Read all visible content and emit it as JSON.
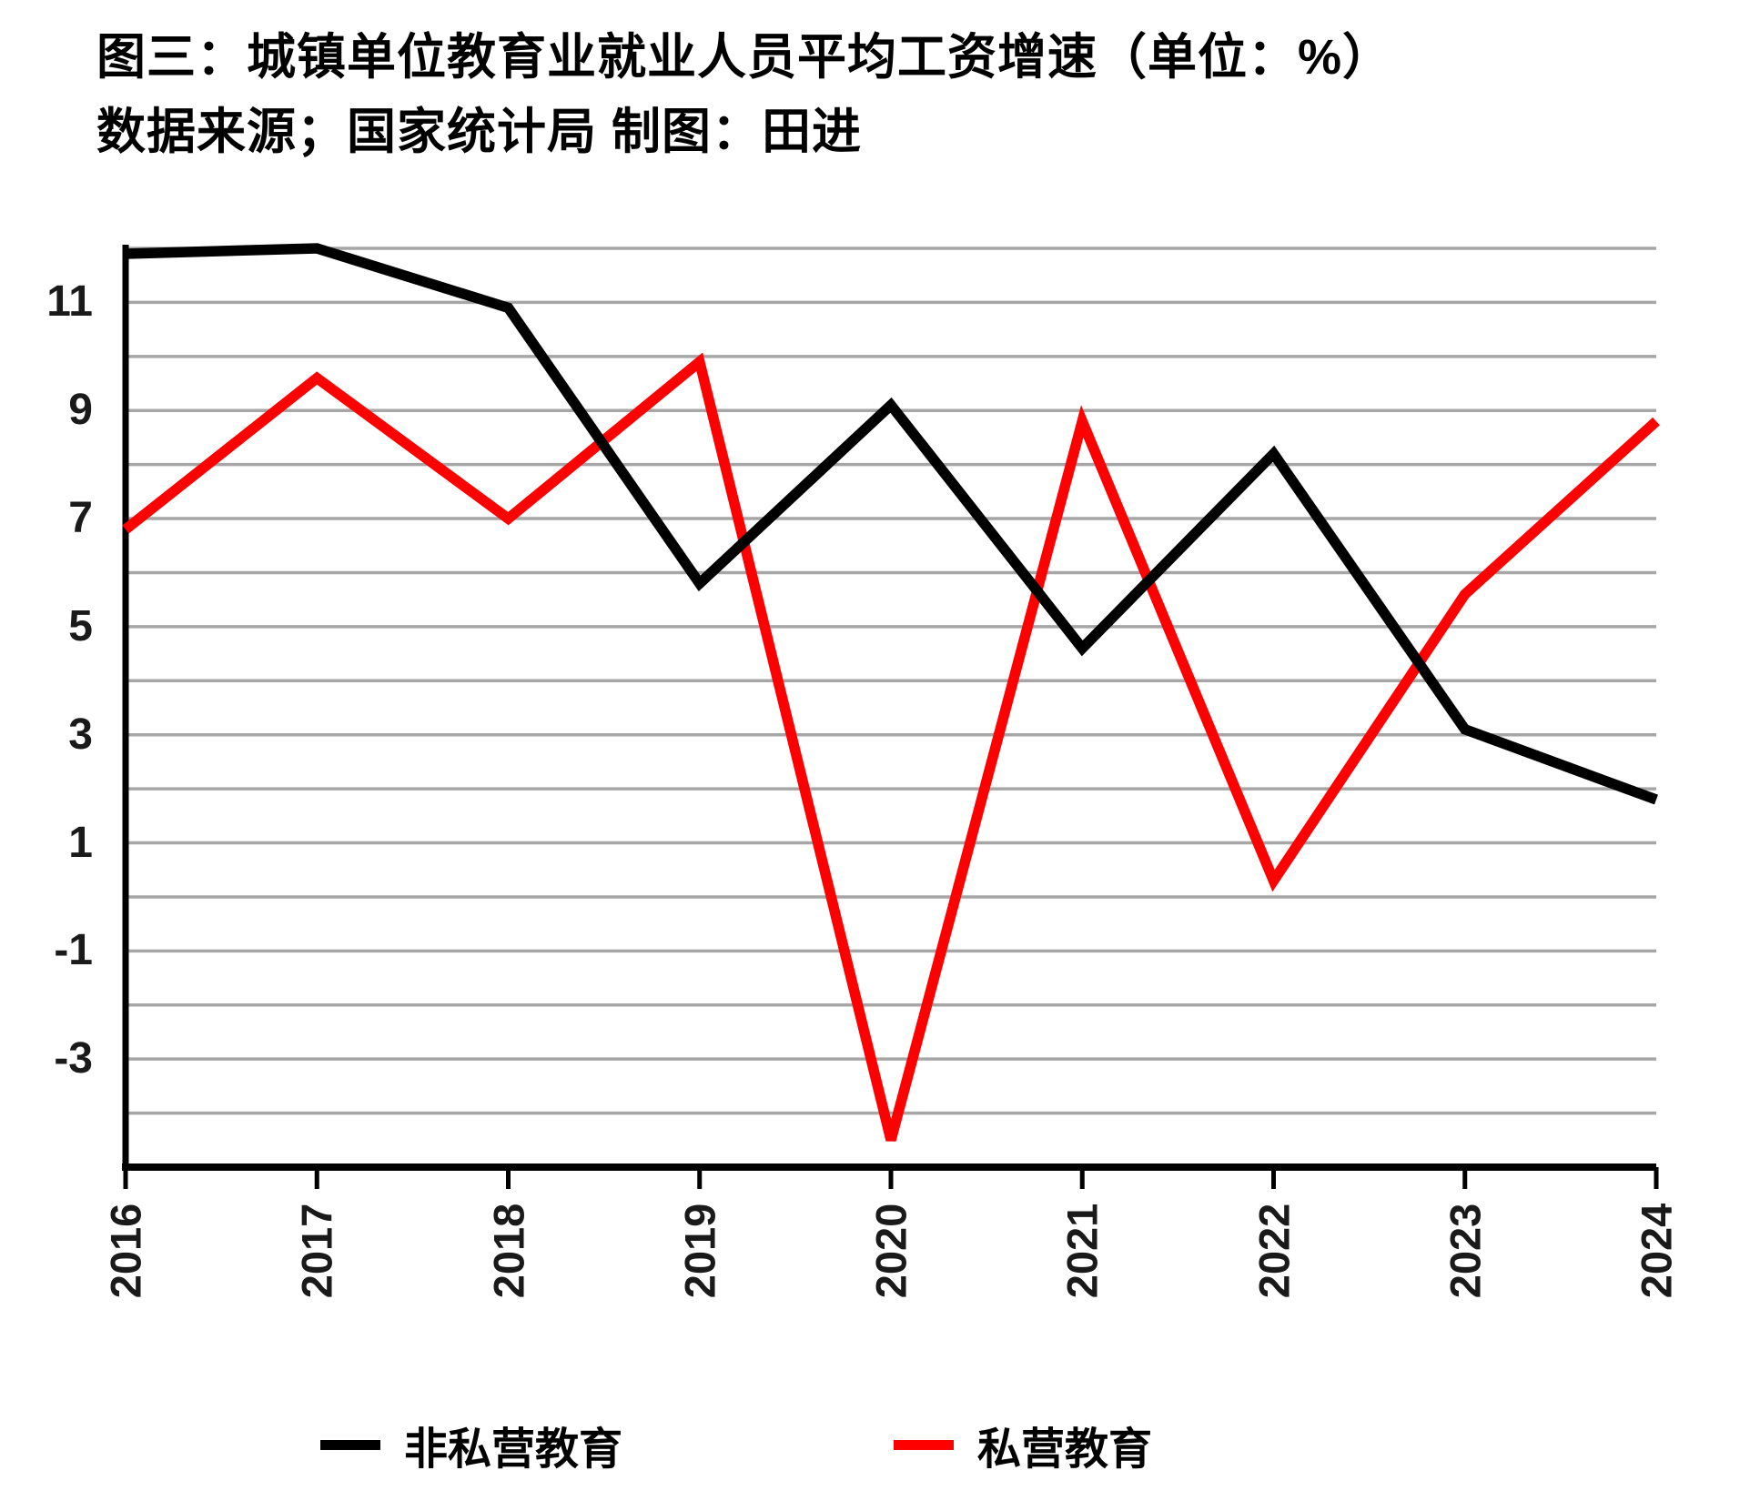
{
  "title": "图三：城镇单位教育业就业人员平均工资增速（单位：%）",
  "subtitle": "数据来源；国家统计局 制图：田进",
  "chart_data": {
    "type": "line",
    "x": [
      "2016",
      "2017",
      "2018",
      "2019",
      "2020",
      "2021",
      "2022",
      "2023",
      "2024"
    ],
    "series": [
      {
        "name": "非私营教育",
        "color": "#000000",
        "values": [
          11.9,
          12.0,
          10.9,
          5.8,
          9.1,
          4.6,
          8.2,
          3.1,
          1.8
        ]
      },
      {
        "name": "私营教育",
        "color": "#fe0000",
        "values": [
          6.8,
          9.6,
          7.0,
          9.9,
          -4.5,
          8.8,
          0.3,
          5.6,
          8.8
        ]
      }
    ],
    "ylabel": "",
    "xlabel": "",
    "ylim": [
      -5,
      12
    ],
    "yticks": [
      11,
      9,
      7,
      5,
      3,
      1,
      -1,
      -3
    ],
    "grid": "horizontal, every 1 unit",
    "grid_color": "#a6a6a6",
    "x_label_rotation": -90,
    "legend_position": "bottom"
  },
  "legend": {
    "items": [
      {
        "label": "非私营教育",
        "color": "#000000"
      },
      {
        "label": "私营教育",
        "color": "#fe0000"
      }
    ]
  }
}
